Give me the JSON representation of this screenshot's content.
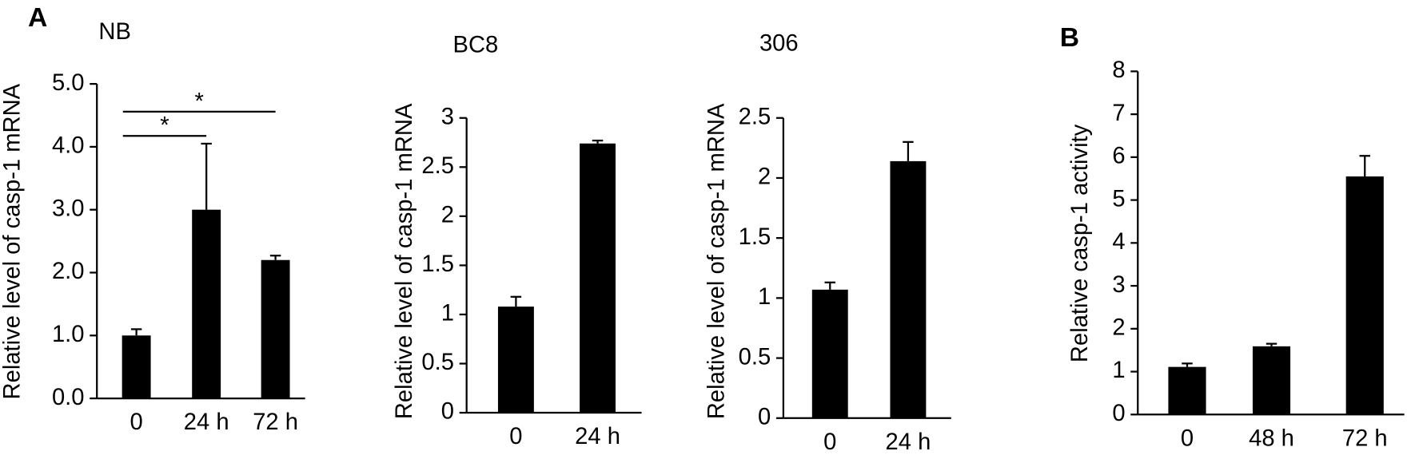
{
  "chart_data": [
    {
      "type": "bar",
      "panel_label": "A",
      "title": "NB",
      "y_label": "Relative level of casp-1 mRNA",
      "categories": [
        "0",
        "24 h",
        "72 h"
      ],
      "values": [
        1.0,
        3.0,
        2.2
      ],
      "errors": [
        0.1,
        1.05,
        0.07
      ],
      "color": "#000000",
      "ylim": [
        0,
        5
      ],
      "yticks": [
        {
          "value": 0,
          "label": "0.0"
        },
        {
          "value": 1,
          "label": "1.0"
        },
        {
          "value": 2,
          "label": "2.0"
        },
        {
          "value": 3,
          "label": "3.0"
        },
        {
          "value": 4,
          "label": "4.0"
        },
        {
          "value": 5,
          "label": "5.0"
        }
      ],
      "significance": [
        {
          "text": "*",
          "between": [
            0,
            1
          ]
        },
        {
          "text": "*",
          "between": [
            0,
            2
          ]
        }
      ]
    },
    {
      "type": "bar",
      "title": "BC8",
      "y_label": "Relative level of casp-1 mRNA",
      "categories": [
        "0",
        "24 h"
      ],
      "values": [
        1.08,
        2.74
      ],
      "errors": [
        0.1,
        0.03
      ],
      "color": "#000000",
      "ylim": [
        0,
        3
      ],
      "yticks": [
        0,
        0.5,
        1,
        1.5,
        2,
        2.5,
        3
      ]
    },
    {
      "type": "bar",
      "title": "306",
      "y_label": "Relative level of casp-1 mRNA",
      "categories": [
        "0",
        "24 h"
      ],
      "values": [
        1.07,
        2.14
      ],
      "errors": [
        0.06,
        0.16
      ],
      "color": "#000000",
      "ylim": [
        0,
        2.5
      ],
      "yticks": [
        0,
        0.5,
        1,
        1.5,
        2,
        2.5
      ]
    },
    {
      "type": "bar",
      "panel_label": "B",
      "y_label": "Relative casp-1 activity",
      "categories": [
        "0",
        "48 h",
        "72 h"
      ],
      "values": [
        1.11,
        1.59,
        5.55
      ],
      "errors": [
        0.08,
        0.06,
        0.48
      ],
      "color": "#000000",
      "ylim": [
        0,
        8
      ],
      "yticks": [
        0,
        1,
        2,
        3,
        4,
        5,
        6,
        7,
        8
      ]
    }
  ]
}
